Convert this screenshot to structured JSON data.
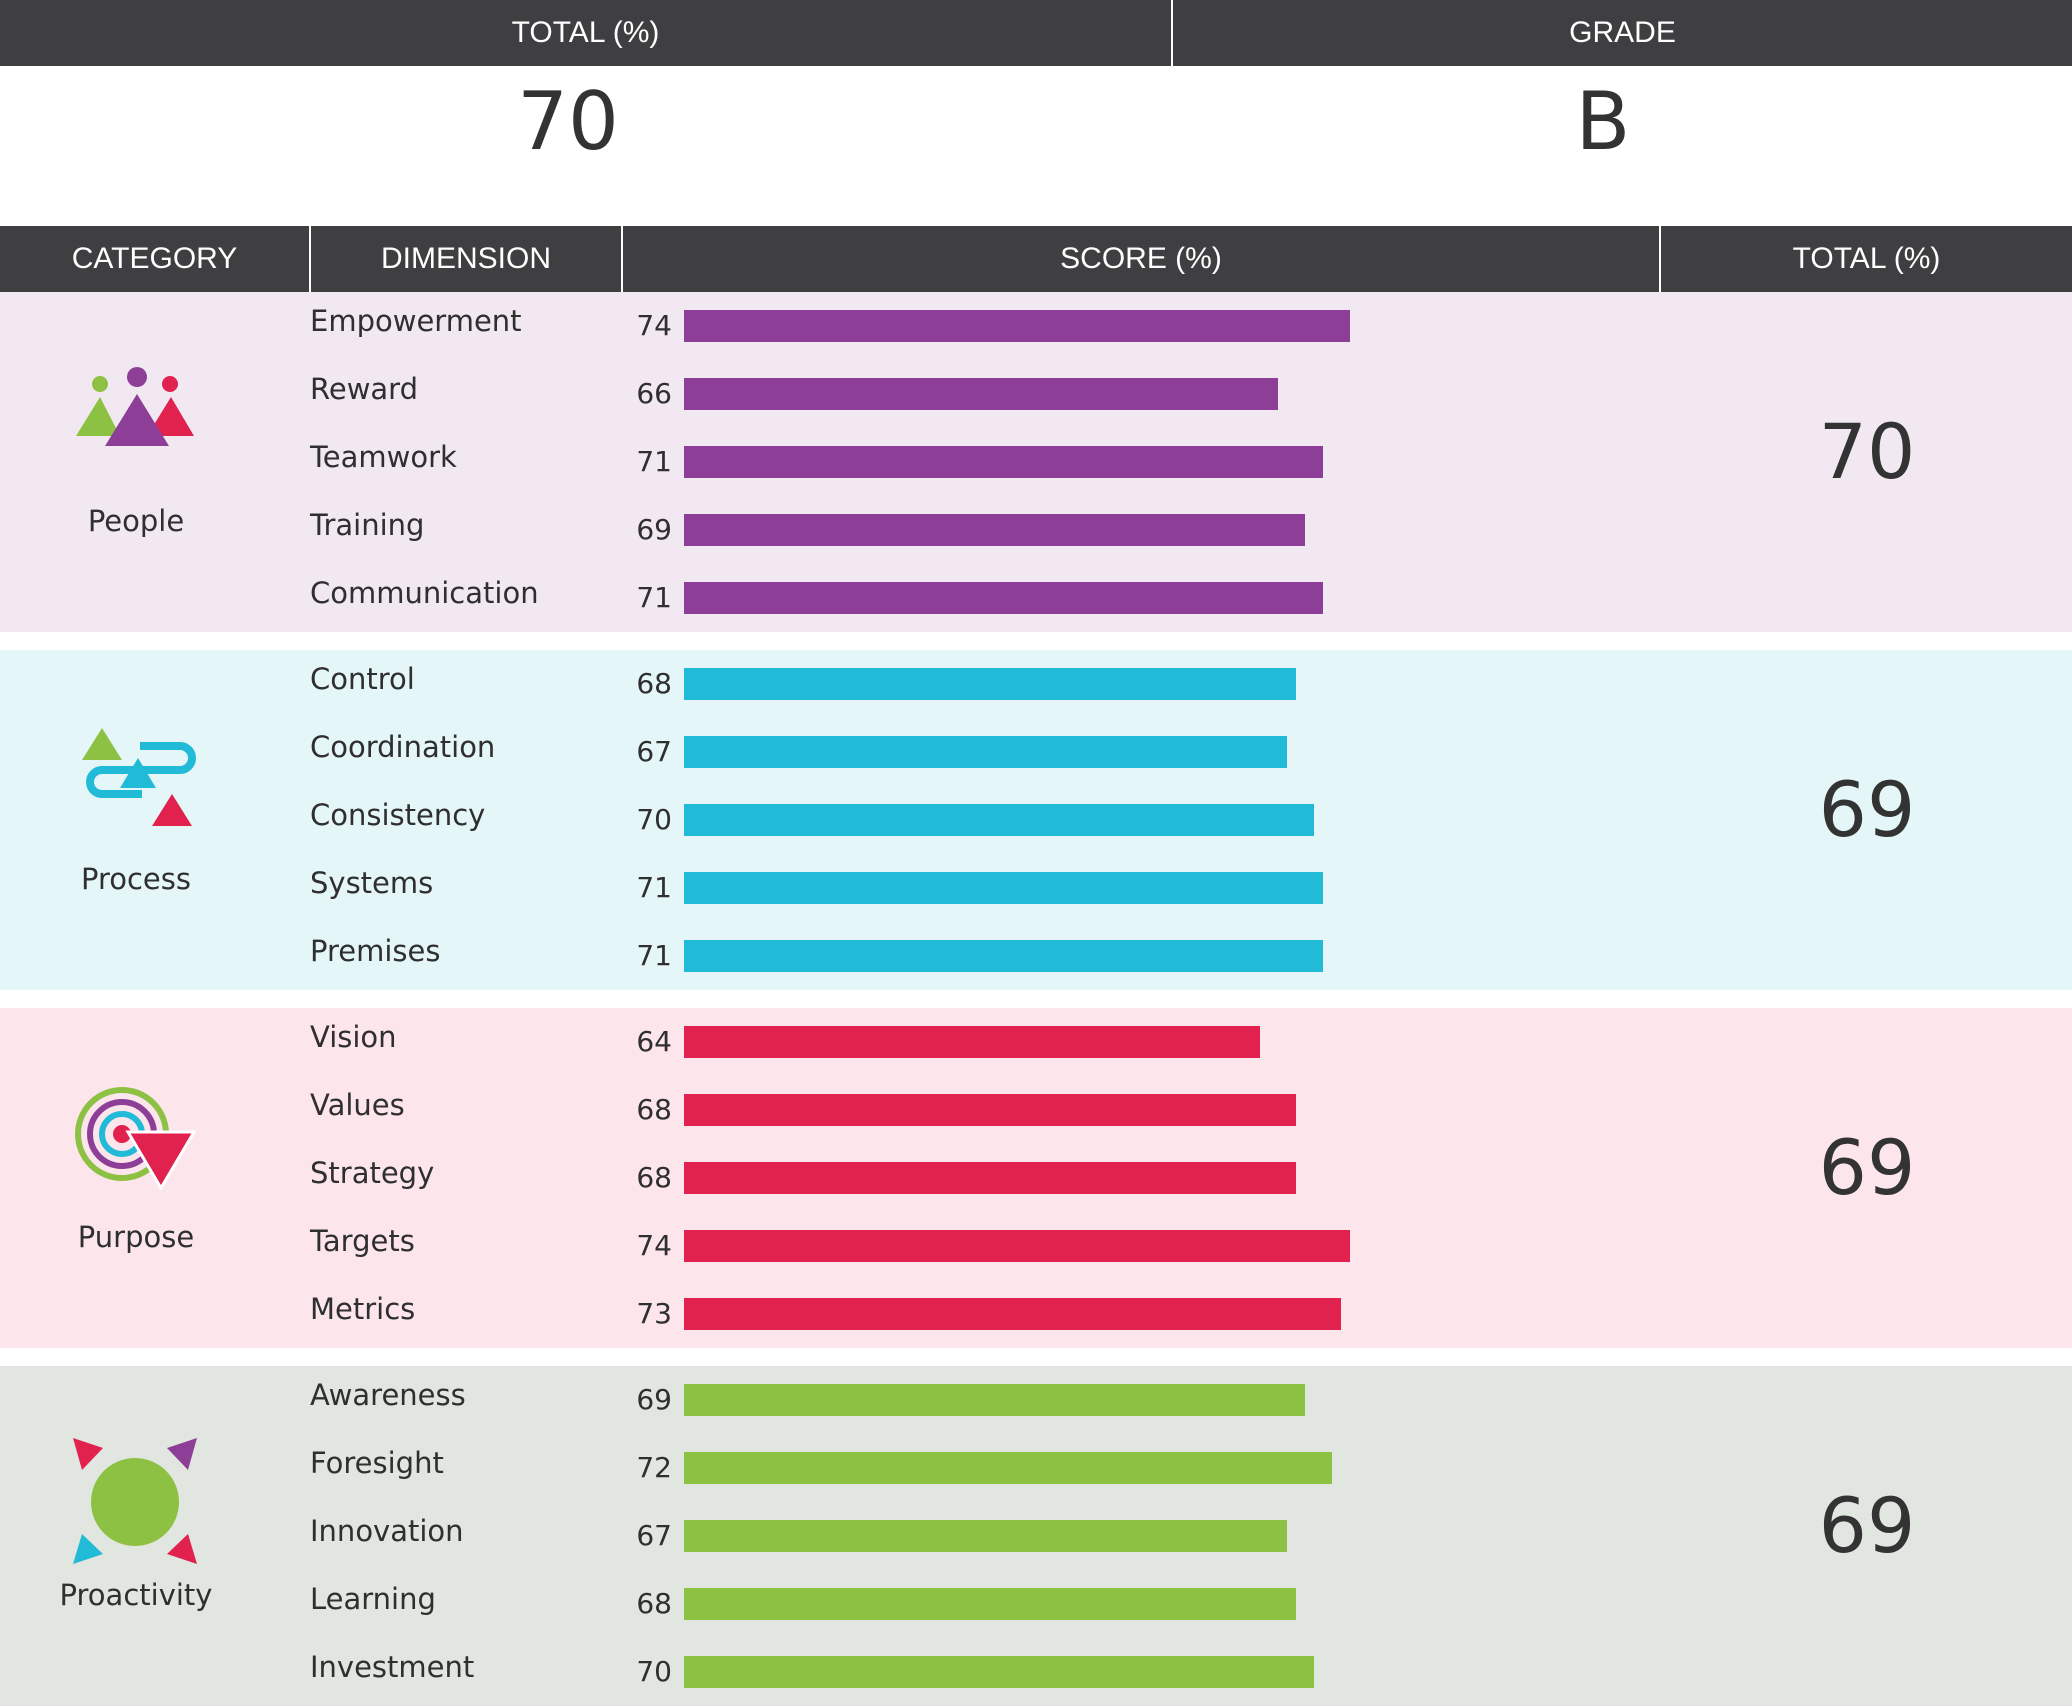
{
  "summary": {
    "total_header": "TOTAL (%)",
    "grade_header": "GRADE",
    "total_value": "70",
    "grade_value": "B"
  },
  "table_headers": {
    "category": "CATEGORY",
    "dimension": "DIMENSION",
    "score": "SCORE (%)",
    "total": "TOTAL (%)"
  },
  "categories": [
    {
      "name": "People",
      "total": "70",
      "icon": "people-icon",
      "bar_color": "#8d3f97",
      "band_color": "#f1e8f1",
      "dimensions": [
        {
          "label": "Empowerment",
          "score": 74
        },
        {
          "label": "Reward",
          "score": 66
        },
        {
          "label": "Teamwork",
          "score": 71
        },
        {
          "label": "Training",
          "score": 69
        },
        {
          "label": "Communication",
          "score": 71
        }
      ]
    },
    {
      "name": "Process",
      "total": "69",
      "icon": "process-icon",
      "bar_color": "#22bbd7",
      "band_color": "#e5f6f9",
      "dimensions": [
        {
          "label": "Control",
          "score": 68
        },
        {
          "label": "Coordination",
          "score": 67
        },
        {
          "label": "Consistency",
          "score": 70
        },
        {
          "label": "Systems",
          "score": 71
        },
        {
          "label": "Premises",
          "score": 71
        }
      ]
    },
    {
      "name": "Purpose",
      "total": "69",
      "icon": "purpose-icon",
      "bar_color": "#e1224e",
      "band_color": "#fce6ec",
      "dimensions": [
        {
          "label": "Vision",
          "score": 64
        },
        {
          "label": "Values",
          "score": 68
        },
        {
          "label": "Strategy",
          "score": 68
        },
        {
          "label": "Targets",
          "score": 74
        },
        {
          "label": "Metrics",
          "score": 73
        }
      ]
    },
    {
      "name": "Proactivity",
      "total": "69",
      "icon": "proactivity-icon",
      "bar_color": "#8dc143",
      "band_color": "#e1e6e0",
      "dimensions": [
        {
          "label": "Awareness",
          "score": 69
        },
        {
          "label": "Foresight",
          "score": 72
        },
        {
          "label": "Innovation",
          "score": 67
        },
        {
          "label": "Learning",
          "score": 68
        },
        {
          "label": "Investment",
          "score": 70
        }
      ]
    }
  ],
  "chart_data": {
    "type": "bar",
    "orientation": "horizontal",
    "title": "",
    "xlabel": "SCORE (%)",
    "ylabel": "",
    "series": [
      {
        "name": "People",
        "color": "#8d3f97",
        "categories": [
          "Empowerment",
          "Reward",
          "Teamwork",
          "Training",
          "Communication"
        ],
        "values": [
          74,
          66,
          71,
          69,
          71
        ]
      },
      {
        "name": "Process",
        "color": "#22bbd7",
        "categories": [
          "Control",
          "Coordination",
          "Consistency",
          "Systems",
          "Premises"
        ],
        "values": [
          68,
          67,
          70,
          71,
          71
        ]
      },
      {
        "name": "Purpose",
        "color": "#e1224e",
        "categories": [
          "Vision",
          "Values",
          "Strategy",
          "Targets",
          "Metrics"
        ],
        "values": [
          64,
          68,
          68,
          74,
          73
        ]
      },
      {
        "name": "Proactivity",
        "color": "#8dc143",
        "categories": [
          "Awareness",
          "Foresight",
          "Innovation",
          "Learning",
          "Investment"
        ],
        "values": [
          69,
          72,
          67,
          68,
          70
        ]
      }
    ],
    "grid": false,
    "legend": "none"
  }
}
